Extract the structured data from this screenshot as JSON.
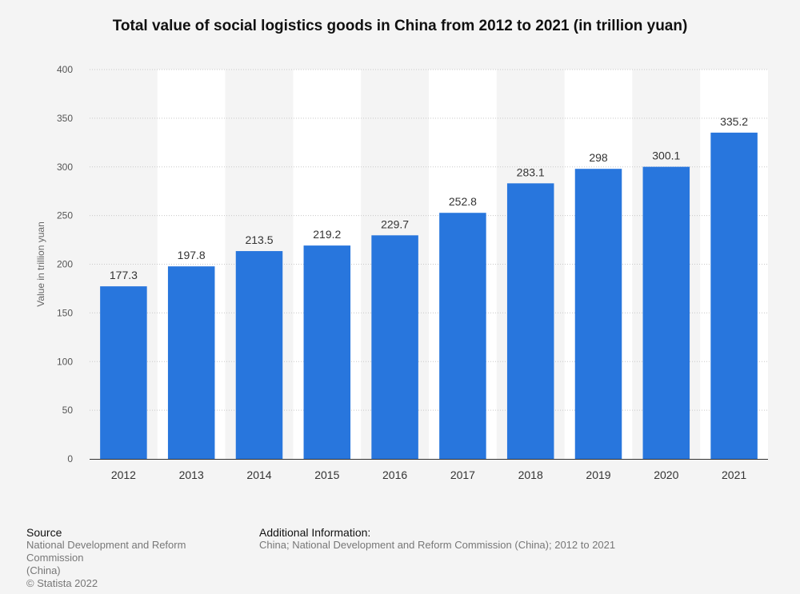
{
  "chart_data": {
    "type": "bar",
    "title": "Total value of social logistics goods in China from 2012 to 2021 (in trillion yuan)",
    "xlabel": "",
    "ylabel": "Value in trillion yuan",
    "ylim": [
      0,
      400
    ],
    "yticks": [
      0,
      50,
      100,
      150,
      200,
      250,
      300,
      350,
      400
    ],
    "categories": [
      "2012",
      "2013",
      "2014",
      "2015",
      "2016",
      "2017",
      "2018",
      "2019",
      "2020",
      "2021"
    ],
    "values": [
      177.3,
      197.8,
      213.5,
      219.2,
      229.7,
      252.8,
      283.1,
      298,
      300.1,
      335.2
    ],
    "value_labels": [
      "177.3",
      "197.8",
      "213.5",
      "219.2",
      "229.7",
      "252.8",
      "283.1",
      "298",
      "300.1",
      "335.2"
    ],
    "bar_color": "#2876dd",
    "grid": true,
    "legend": "none"
  },
  "footer": {
    "source_heading": "Source",
    "source_line1": "National Development and Reform Commission",
    "source_line2": "(China)",
    "copyright": "© Statista 2022",
    "additional_heading": "Additional Information:",
    "additional_text": "China; National Development and Reform Commission (China); 2012 to 2021"
  }
}
